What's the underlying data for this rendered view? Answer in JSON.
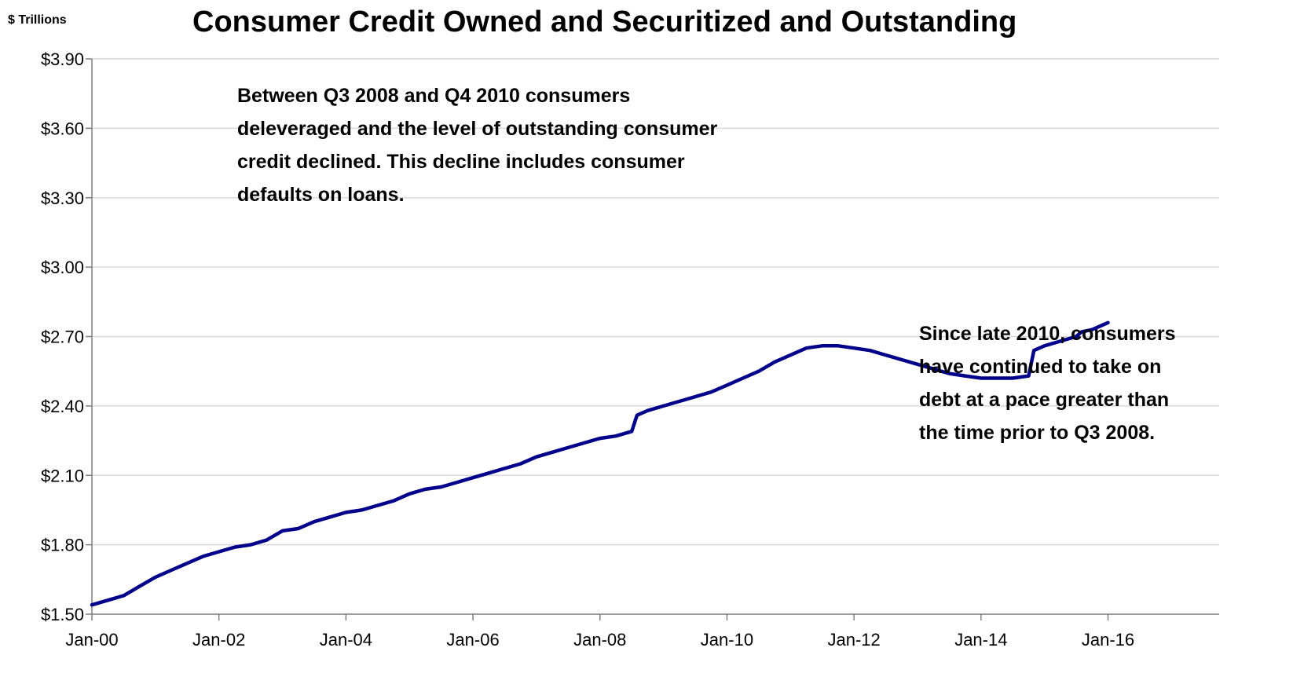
{
  "chart_data": {
    "type": "line",
    "title": "Consumer Credit Owned and Securitized and Outstanding",
    "unit_label": "$ Trillions",
    "xlabel": "",
    "ylabel": "",
    "ylim": [
      1.5,
      3.9
    ],
    "y_ticks": [
      "$1.50",
      "$1.80",
      "$2.10",
      "$2.40",
      "$2.70",
      "$3.00",
      "$3.30",
      "$3.60",
      "$3.90"
    ],
    "x_ticks": [
      "Jan-00",
      "Jan-02",
      "Jan-04",
      "Jan-06",
      "Jan-08",
      "Jan-10",
      "Jan-12",
      "Jan-14",
      "Jan-16"
    ],
    "xlim": [
      "2000-01",
      "2017-10"
    ],
    "grid": "horizontal",
    "series_color": "#00008B",
    "series": [
      {
        "name": "",
        "points": [
          [
            "2000-01",
            1.54
          ],
          [
            "2000-04",
            1.56
          ],
          [
            "2000-07",
            1.58
          ],
          [
            "2000-10",
            1.62
          ],
          [
            "2001-01",
            1.66
          ],
          [
            "2001-04",
            1.69
          ],
          [
            "2001-07",
            1.72
          ],
          [
            "2001-10",
            1.75
          ],
          [
            "2002-01",
            1.77
          ],
          [
            "2002-04",
            1.79
          ],
          [
            "2002-07",
            1.8
          ],
          [
            "2002-10",
            1.82
          ],
          [
            "2003-01",
            1.86
          ],
          [
            "2003-04",
            1.87
          ],
          [
            "2003-07",
            1.9
          ],
          [
            "2003-10",
            1.92
          ],
          [
            "2004-01",
            1.94
          ],
          [
            "2004-04",
            1.95
          ],
          [
            "2004-07",
            1.97
          ],
          [
            "2004-10",
            1.99
          ],
          [
            "2005-01",
            2.02
          ],
          [
            "2005-04",
            2.04
          ],
          [
            "2005-07",
            2.05
          ],
          [
            "2005-10",
            2.07
          ],
          [
            "2006-01",
            2.09
          ],
          [
            "2006-04",
            2.11
          ],
          [
            "2006-07",
            2.13
          ],
          [
            "2006-10",
            2.15
          ],
          [
            "2007-01",
            2.18
          ],
          [
            "2007-04",
            2.2
          ],
          [
            "2007-07",
            2.22
          ],
          [
            "2007-10",
            2.24
          ],
          [
            "2008-01",
            2.26
          ],
          [
            "2008-04",
            2.27
          ],
          [
            "2008-07",
            2.29
          ],
          [
            "2008-08",
            2.36
          ],
          [
            "2008-10",
            2.38
          ],
          [
            "2009-01",
            2.4
          ],
          [
            "2009-04",
            2.42
          ],
          [
            "2009-07",
            2.44
          ],
          [
            "2009-10",
            2.46
          ],
          [
            "2010-01",
            2.49
          ],
          [
            "2010-04",
            2.52
          ],
          [
            "2010-07",
            2.55
          ],
          [
            "2010-10",
            2.59
          ],
          [
            "2011-01",
            2.62
          ],
          [
            "2011-04",
            2.65
          ],
          [
            "2011-07",
            2.66
          ],
          [
            "2011-10",
            2.66
          ],
          [
            "2012-01",
            2.65
          ],
          [
            "2012-04",
            2.64
          ],
          [
            "2012-07",
            2.62
          ],
          [
            "2012-10",
            2.6
          ],
          [
            "2013-01",
            2.58
          ],
          [
            "2013-04",
            2.56
          ],
          [
            "2013-07",
            2.54
          ],
          [
            "2013-10",
            2.53
          ],
          [
            "2014-01",
            2.52
          ],
          [
            "2014-04",
            2.52
          ],
          [
            "2014-07",
            2.52
          ],
          [
            "2014-10",
            2.53
          ],
          [
            "2014-11",
            2.64
          ],
          [
            "2015-01",
            2.66
          ],
          [
            "2015-04",
            2.68
          ],
          [
            "2015-07",
            2.7
          ],
          [
            "2015-08",
            2.72
          ],
          [
            "2015-10",
            2.73
          ],
          [
            "2016-01",
            2.76
          ]
        ]
      }
    ],
    "annotations": [
      {
        "lines": [
          "Between Q3 2008 and Q4 2010 consumers",
          "deleveraged and the level of outstanding consumer",
          "credit declined. This decline includes consumer",
          "defaults on loans."
        ]
      },
      {
        "lines": [
          "Since late 2010, consumers",
          "have continued to take on",
          "debt at a pace greater than",
          "the time prior to Q3 2008."
        ]
      }
    ]
  }
}
